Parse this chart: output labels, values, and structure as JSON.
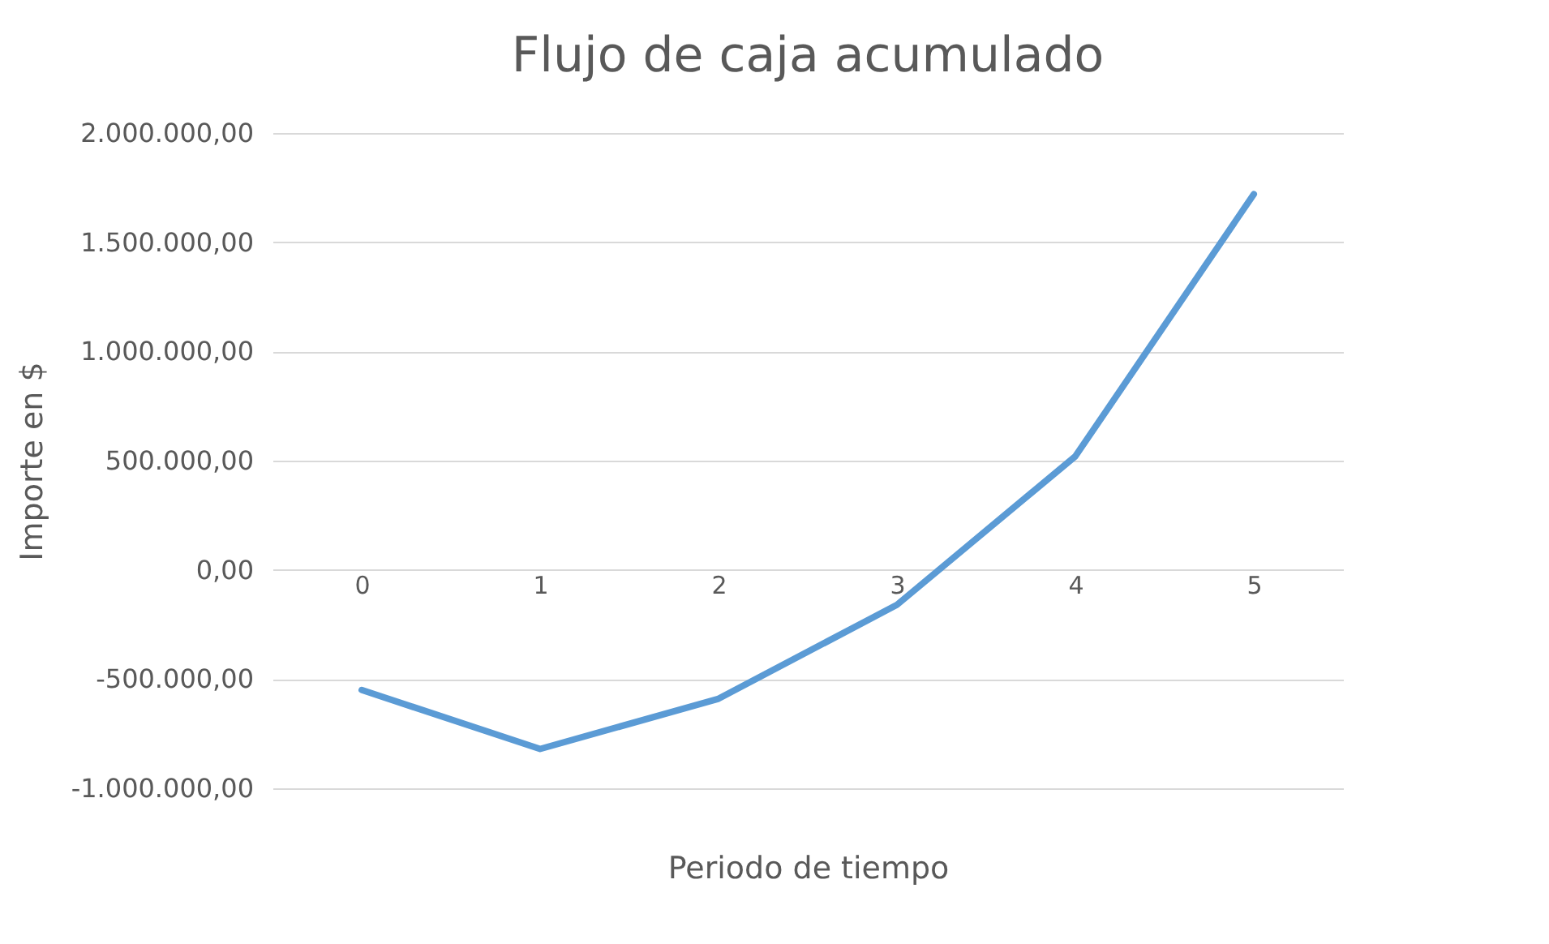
{
  "chart_data": {
    "type": "line",
    "title": "Flujo de caja acumulado",
    "xlabel": "Periodo de tiempo",
    "ylabel": "Importe en $",
    "categories": [
      "0",
      "1",
      "2",
      "3",
      "4",
      "5"
    ],
    "series": [
      {
        "color": "#5b9bd5",
        "values": [
          -550000,
          -820000,
          -590000,
          -160000,
          520000,
          1720000
        ]
      }
    ],
    "ylim": [
      -1000000,
      2000000
    ],
    "yticks": [
      {
        "value": -1000000,
        "label": "-1.000.000,00"
      },
      {
        "value": -500000,
        "label": "-500.000,00"
      },
      {
        "value": 0,
        "label": "0,00"
      },
      {
        "value": 500000,
        "label": "500.000,00"
      },
      {
        "value": 1000000,
        "label": "1.000.000,00"
      },
      {
        "value": 1500000,
        "label": "1.500.000,00"
      },
      {
        "value": 2000000,
        "label": "2.000.000,00"
      }
    ],
    "grid": "y",
    "marker": "none",
    "line_style": "solid"
  }
}
